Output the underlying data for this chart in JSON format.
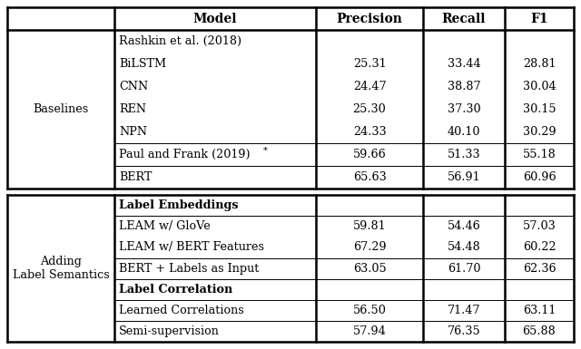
{
  "header": [
    "Model",
    "Precision",
    "Recall",
    "F1"
  ],
  "section1_label": "Baselines",
  "section2_label": "Adding\nLabel Semantics",
  "rows1": [
    {
      "model": "Rashkin et al. (2018)",
      "precision": "",
      "recall": "",
      "f1": "",
      "superscript": false
    },
    {
      "model": "BiLSTM",
      "precision": "25.31",
      "recall": "33.44",
      "f1": "28.81",
      "superscript": false
    },
    {
      "model": "CNN",
      "precision": "24.47",
      "recall": "38.87",
      "f1": "30.04",
      "superscript": false
    },
    {
      "model": "REN",
      "precision": "25.30",
      "recall": "37.30",
      "f1": "30.15",
      "superscript": false
    },
    {
      "model": "NPN",
      "precision": "24.33",
      "recall": "40.10",
      "f1": "30.29",
      "superscript": false
    },
    {
      "model": "Paul and Frank (2019)",
      "precision": "59.66",
      "recall": "51.33",
      "f1": "55.18",
      "superscript": true
    },
    {
      "model": "BERT",
      "precision": "65.63",
      "recall": "56.91",
      "f1": "60.96",
      "superscript": false
    }
  ],
  "rows2": [
    {
      "model": "Label Embeddings",
      "precision": "",
      "recall": "",
      "f1": "",
      "bold": true,
      "subsection_header": true
    },
    {
      "model": "LEAM w/ GloVe",
      "precision": "59.81",
      "recall": "54.46",
      "f1": "57.03",
      "bold": false,
      "subsection_header": false
    },
    {
      "model": "LEAM w/ BERT Features",
      "precision": "67.29",
      "recall": "54.48",
      "f1": "60.22",
      "bold": false,
      "subsection_header": false
    },
    {
      "model": "BERT + Labels as Input",
      "precision": "63.05",
      "recall": "61.70",
      "f1": "62.36",
      "bold": false,
      "subsection_header": false
    },
    {
      "model": "Label Correlation",
      "precision": "",
      "recall": "",
      "f1": "",
      "bold": true,
      "subsection_header": true
    },
    {
      "model": "Learned Correlations",
      "precision": "56.50",
      "recall": "71.47",
      "f1": "63.11",
      "bold": false,
      "subsection_header": false
    },
    {
      "model": "Semi-supervision",
      "precision": "57.94",
      "recall": "76.35",
      "f1": "65.88",
      "bold": false,
      "subsection_header": false
    }
  ],
  "bg_color": "#ffffff",
  "lw_thick": 1.8,
  "lw_thin": 0.7,
  "header_fontsize": 10,
  "body_fontsize": 9.2
}
